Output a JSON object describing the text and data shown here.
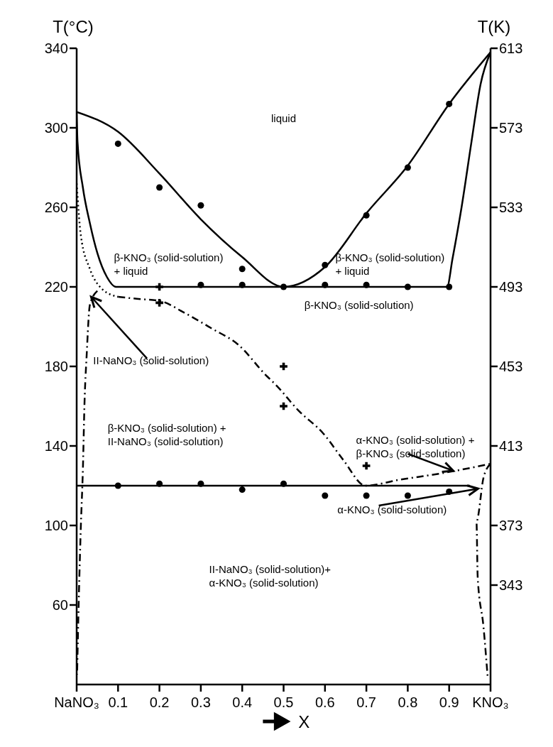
{
  "chart_data": {
    "type": "line",
    "ylabel": "T(°C)",
    "y2label": "T(K)",
    "xlabel": "X",
    "xlim": [
      0,
      1
    ],
    "xticks": [
      {
        "value": 0,
        "label": "NaNO₃"
      },
      0.1,
      0.2,
      0.3,
      0.4,
      0.5,
      0.6,
      0.7,
      0.8,
      0.9,
      {
        "value": 1,
        "label": "KNO₃"
      }
    ],
    "ylim": [
      20,
      340
    ],
    "yticks": [
      60,
      100,
      140,
      180,
      220,
      260,
      300,
      340
    ],
    "y2lim": [
      293,
      613
    ],
    "y2ticks": [
      343,
      373,
      413,
      453,
      493,
      533,
      573,
      613
    ],
    "grid": false,
    "annotations": [
      "liquid",
      "β-KNO₃ (solid-solution)\n+ liquid",
      "β-KNO₃ (solid-solution)\n+ liquid",
      "β-KNO₃ (solid-solution)",
      {
        "text": "II-NaNO₃ (solid-solution)",
        "x": 0.035,
        "y": 215
      },
      "β-KNO₃ (solid-solution) +\nII-NaNO₃ (solid-solution)",
      {
        "text": "α-KNO₃ (solid-solution) +\nβ-KNO₃ (solid-solution)",
        "x": 0.91,
        "y": 127.5
      },
      {
        "text": "α-KNO₃ (solid-solution)",
        "x": 0.97,
        "y": 118.5
      },
      "II-NaNO₃ (solid-solution)+\nα-KNO₃ (solid-solution)"
    ],
    "series": [
      {
        "color": "#000000",
        "line_style": "solid",
        "marker": "none",
        "x": [
          0,
          0.1,
          0.2,
          0.3,
          0.4,
          0.5,
          0.6,
          0.7,
          0.8,
          0.9,
          1
        ],
        "values": [
          308,
          298,
          277,
          254,
          235,
          220,
          230,
          257,
          281,
          312,
          338
        ]
      },
      {
        "color": "#000000",
        "line_style": "solid",
        "marker": "none",
        "x": [
          0,
          0.002,
          0.015,
          0.032,
          0.05,
          0.073,
          0.095,
          0.5,
          0.895,
          0.908,
          0.93,
          0.954,
          0.976,
          1
        ],
        "values": [
          308,
          293,
          270,
          252,
          237,
          225,
          220,
          220,
          220,
          234,
          260,
          293,
          322,
          338
        ]
      },
      {
        "color": "#000000",
        "line_style": "solid",
        "marker": "none",
        "x": [
          0,
          0.95
        ],
        "values": [
          120,
          120
        ]
      },
      {
        "color": "#000000",
        "line_style": "dotted",
        "marker": "none",
        "x": [
          0,
          0.01,
          0.032,
          0.061,
          0.1
        ],
        "values": [
          272,
          246,
          229,
          219,
          215
        ]
      },
      {
        "color": "#000000",
        "line_style": "dashed",
        "marker": "none",
        "x": [
          0.1,
          0.145,
          0.2,
          0.26,
          0.327,
          0.39,
          0.46,
          0.48,
          0.535,
          0.597,
          0.644,
          0.698,
          0.78,
          0.875,
          0.953,
          1
        ],
        "values": [
          215,
          214,
          213,
          207,
          199,
          191,
          175,
          171,
          158,
          146,
          133,
          120,
          123,
          126,
          129,
          131
        ]
      },
      {
        "color": "#000000",
        "line_style": "dashed",
        "marker": "none",
        "x": [
          0.05,
          0.032,
          0.024,
          0.019,
          0.015,
          0.01,
          0.005,
          0.001
        ],
        "values": [
          218,
          211,
          185,
          162,
          128,
          99,
          62,
          25
        ]
      },
      {
        "color": "#000000",
        "line_style": "dashed",
        "marker": "none",
        "x": [
          1,
          0.983,
          0.966,
          0.969,
          0.983,
          0.993
        ],
        "values": [
          131,
          124,
          102,
          74,
          49,
          24
        ]
      },
      {
        "type": "scatter",
        "color": "#000000",
        "marker": "circle",
        "x": [
          0.1,
          0.2,
          0.3,
          0.4,
          0.5,
          0.6,
          0.7,
          0.8,
          0.9,
          0.3,
          0.4,
          0.6,
          0.7,
          0.8,
          0.9,
          0.1,
          0.2,
          0.3,
          0.4,
          0.5,
          0.6,
          0.7,
          0.8,
          0.9
        ],
        "values": [
          292,
          270,
          261,
          229,
          220,
          231,
          256,
          280,
          312,
          221,
          221,
          221,
          221,
          220,
          220,
          120,
          121,
          121,
          118,
          121,
          115,
          115,
          115,
          117
        ]
      },
      {
        "type": "scatter",
        "color": "#000000",
        "marker": "cross",
        "x": [
          0.2,
          0.2,
          0.5,
          0.5,
          0.7
        ],
        "values": [
          220,
          212,
          180,
          160,
          130
        ]
      }
    ]
  }
}
